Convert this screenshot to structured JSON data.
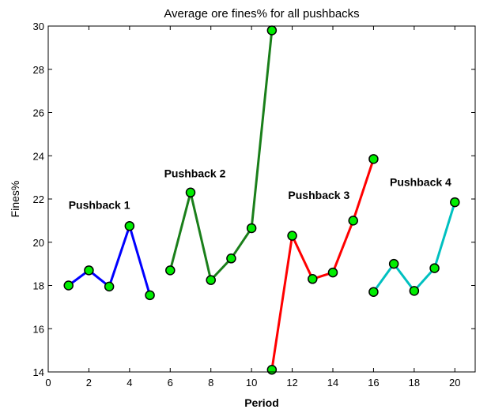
{
  "chart_data": {
    "type": "line",
    "title": "Average ore fines% for all pushbacks",
    "xlabel": "Period",
    "ylabel": "Fines%",
    "xlim": [
      0,
      21
    ],
    "ylim": [
      14,
      30
    ],
    "xticks": [
      0,
      2,
      4,
      6,
      8,
      10,
      12,
      14,
      16,
      18,
      20
    ],
    "yticks": [
      14,
      16,
      18,
      20,
      22,
      24,
      26,
      28,
      30
    ],
    "grid": false,
    "marker_color": "#00ee00",
    "series": [
      {
        "color": "#0000ff",
        "x": [
          1,
          2,
          3,
          4,
          5
        ],
        "y": [
          18.0,
          18.7,
          17.95,
          20.75,
          17.55
        ]
      },
      {
        "color": "#1a7f1a",
        "x": [
          6,
          7,
          8,
          9,
          10,
          11
        ],
        "y": [
          18.7,
          22.3,
          18.25,
          19.25,
          20.65,
          29.8
        ]
      },
      {
        "color": "#ff0000",
        "x": [
          11,
          12,
          13,
          14,
          15,
          16
        ],
        "y": [
          14.1,
          20.3,
          18.3,
          18.6,
          21.0,
          23.85
        ]
      },
      {
        "color": "#00c0c0",
        "x": [
          16,
          17,
          18,
          19,
          20
        ],
        "y": [
          17.7,
          19.0,
          17.75,
          18.8,
          21.85
        ]
      }
    ],
    "annotations": [
      {
        "text": "Pushback 1",
        "x": 1.0,
        "y": 21.55
      },
      {
        "text": "Pushback 2",
        "x": 5.7,
        "y": 23.0
      },
      {
        "text": "Pushback 3",
        "x": 11.8,
        "y": 22.0
      },
      {
        "text": "Pushback 4",
        "x": 16.8,
        "y": 22.6
      }
    ]
  }
}
